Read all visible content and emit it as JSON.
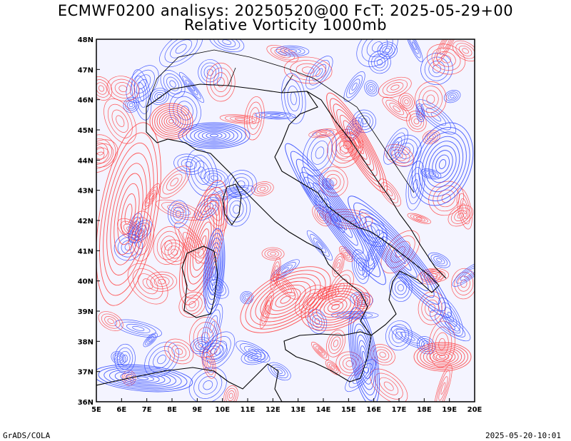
{
  "header": {
    "title_line1": "ECMWF0200 analisys: 20250520@00 FcT: 2025-05-29+00",
    "title_line2": "Relative Vorticity 1000mb"
  },
  "map": {
    "lon_labels": [
      "5E",
      "6E",
      "7E",
      "8E",
      "9E",
      "10E",
      "11E",
      "12E",
      "13E",
      "14E",
      "15E",
      "16E",
      "17E",
      "18E",
      "19E",
      "20E"
    ],
    "lat_labels": [
      "48N",
      "47N",
      "46N",
      "45N",
      "44N",
      "43N",
      "42N",
      "41N",
      "40N",
      "39N",
      "38N",
      "37N",
      "36N"
    ],
    "extent": {
      "lon_min": 5,
      "lon_max": 20,
      "lat_min": 36,
      "lat_max": 48
    },
    "colors": {
      "positive": "#ff3a3a",
      "negative": "#2a44ff",
      "coast": "#000000"
    }
  },
  "footer": {
    "left": "GrADS/COLA",
    "right": "2025-05-20-10:01"
  }
}
